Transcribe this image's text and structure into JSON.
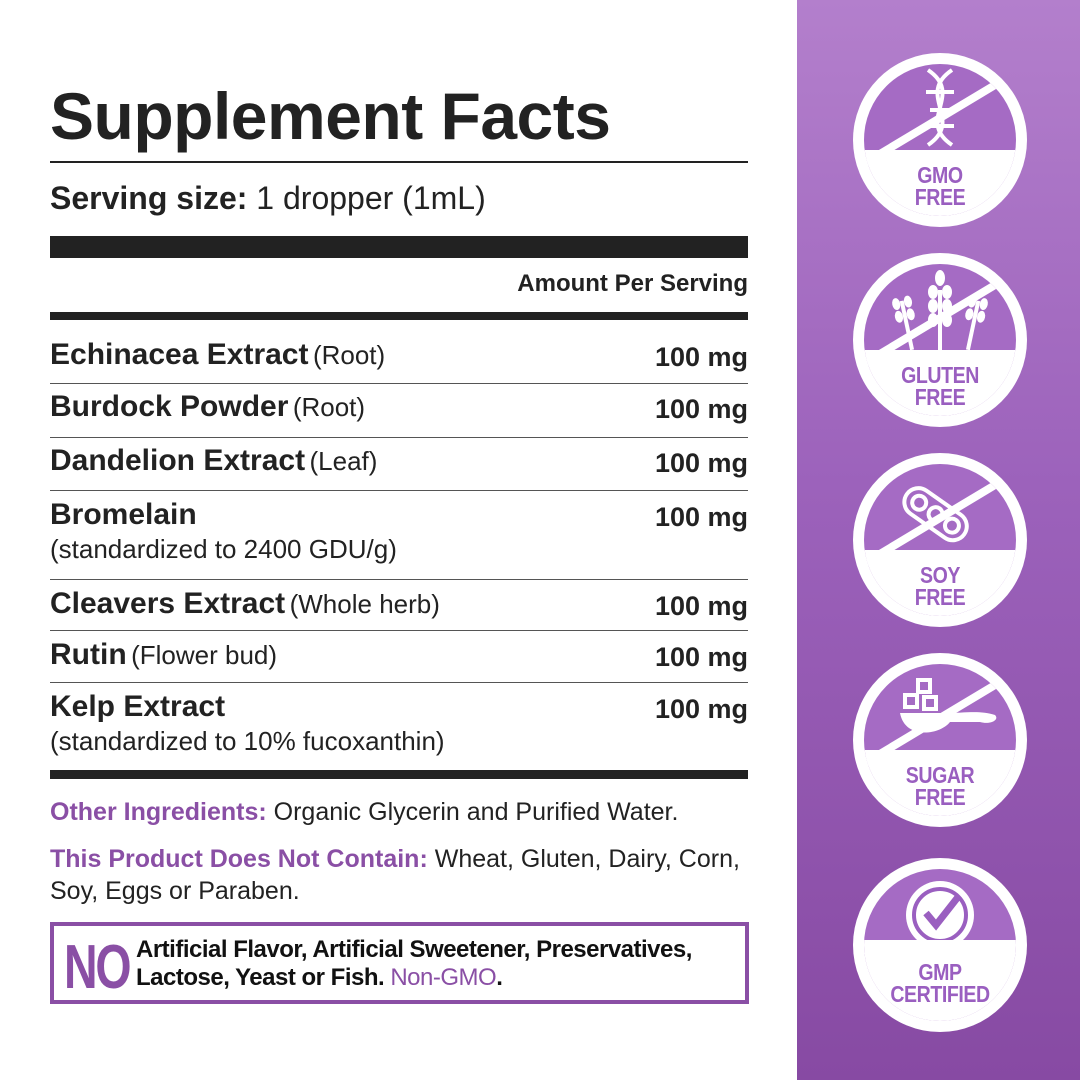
{
  "title": "Supplement Facts",
  "serving": {
    "label": "Serving size:",
    "value": "1 dropper (1mL)"
  },
  "amount_header": "Amount Per Serving",
  "ingredients": [
    {
      "name": "Echinacea Extract",
      "part": "(Root)",
      "amount": "100 mg"
    },
    {
      "name": "Burdock Powder",
      "part": "(Root)",
      "amount": "100 mg"
    },
    {
      "name": "Dandelion Extract",
      "part": "(Leaf)",
      "amount": "100 mg"
    },
    {
      "name": "Bromelain",
      "sub": "(standardized to 2400 GDU/g)",
      "amount": "100 mg"
    },
    {
      "name": "Cleavers Extract",
      "part": "(Whole herb)",
      "amount": "100 mg"
    },
    {
      "name": "Rutin",
      "part": "(Flower bud)",
      "amount": "100 mg"
    },
    {
      "name": "Kelp Extract",
      "sub": "(standardized to 10% fucoxanthin)",
      "amount": "100 mg"
    }
  ],
  "other": {
    "label": "Other Ingredients:",
    "value": "Organic Glycerin and Purified Water."
  },
  "not_contain": {
    "label": "This Product Does Not Contain:",
    "value": "Wheat, Gluten, Dairy, Corn, Soy, Eggs or Paraben."
  },
  "no_box": {
    "no": "NO",
    "line1": "Artificial Flavor, Artificial Sweetener, Preservatives,",
    "line2": "Lactose, Yeast or Fish.",
    "highlight": "Non-GMO",
    "end": "."
  },
  "badges": [
    {
      "icon": "dna-icon",
      "l1": "GMO",
      "l2": "FREE"
    },
    {
      "icon": "wheat-icon",
      "l1": "GLUTEN",
      "l2": "FREE"
    },
    {
      "icon": "soybean-icon",
      "l1": "SOY",
      "l2": "FREE"
    },
    {
      "icon": "sugar-spoon-icon",
      "l1": "SUGAR",
      "l2": "FREE"
    },
    {
      "icon": "certified-seal-icon",
      "l1": "GMP",
      "l2": "CERTIFIED"
    }
  ],
  "colors": {
    "accent": "#8a4fa5",
    "panel_top": "#b37fcc",
    "panel_bottom": "#874aa3",
    "text": "#222222"
  }
}
